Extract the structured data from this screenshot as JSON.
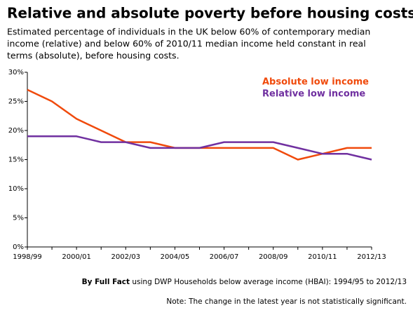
{
  "chart_data": {
    "type": "line",
    "title": "Relative and absolute poverty before housing costs",
    "subtitle": [
      "Estimated percentage of individuals in the UK below 60% of contemporary median",
      "income (relative) and below 60% of 2010/11 median income held constant in real",
      "terms (absolute), before housing costs."
    ],
    "categories": [
      "1998/99",
      null,
      "2000/01",
      null,
      "2002/03",
      null,
      "2004/05",
      null,
      "2006/07",
      null,
      "2008/09",
      null,
      "2010/11",
      null,
      "2012/13"
    ],
    "series": [
      {
        "name": "Absolute low income",
        "color": "#f04a0c",
        "values": [
          27,
          25,
          22,
          20,
          18,
          18,
          17,
          17,
          17,
          17,
          17,
          15,
          16,
          17,
          17
        ]
      },
      {
        "name": "Relative low income",
        "color": "#7030a0",
        "values": [
          19,
          19,
          19,
          18,
          18,
          17,
          17,
          17,
          18,
          18,
          18,
          17,
          16,
          16,
          15
        ]
      }
    ],
    "ylim": [
      0,
      30
    ],
    "yticks": [
      {
        "value": 0,
        "label": "0%"
      },
      {
        "value": 5,
        "label": "5%"
      },
      {
        "value": 10,
        "label": "10%"
      },
      {
        "value": 15,
        "label": "15%"
      },
      {
        "value": 20,
        "label": "20%"
      },
      {
        "value": 25,
        "label": "25%"
      },
      {
        "value": 30,
        "label": "30%"
      }
    ],
    "grid": false,
    "legend": "top-right",
    "source_bold": "By Full Fact",
    "source": "using DWP Households below average income (HBAI): 1994/95 to 2012/13",
    "note": "Note: The change in the latest year is not statistically  significant."
  }
}
